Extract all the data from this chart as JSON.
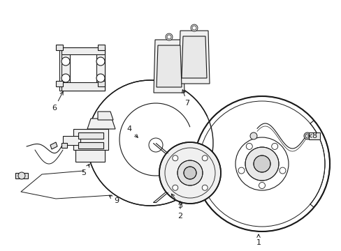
{
  "bg_color": "#ffffff",
  "line_color": "#1a1a1a",
  "lw": 0.8,
  "fig_width": 4.89,
  "fig_height": 3.6,
  "dpi": 100,
  "xlim": [
    0,
    489
  ],
  "ylim": [
    0,
    360
  ]
}
